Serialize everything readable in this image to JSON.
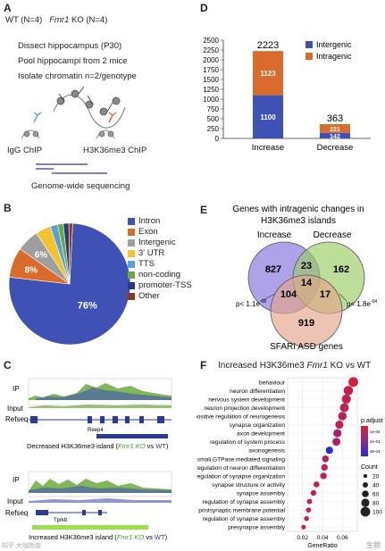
{
  "panels": {
    "A": {
      "letter": "A",
      "genotypes": "WT (N=4)   Fmr1 KO (N=4)",
      "wt": "WT (N=4)",
      "ko_gene": "Fmr1",
      "ko_rest": " KO (N=4)",
      "steps": [
        "Dissect hippocampus (P30)",
        "Pool hippocampi from 2 mice",
        "Isolate chromatin n=2/genotype"
      ],
      "igg": "IgG ChIP",
      "h3": "H3K36me3 ChIP",
      "seq": "Genome-wide sequencing"
    },
    "B": {
      "letter": "B",
      "slice_labels": [
        "76%",
        "8%",
        "6%"
      ],
      "legend": [
        {
          "label": "Intron",
          "color": "#3f51b5"
        },
        {
          "label": "Exon",
          "color": "#d96b2b"
        },
        {
          "label": "Intergenic",
          "color": "#9e9e9e"
        },
        {
          "label": "3' UTR",
          "color": "#f2c230"
        },
        {
          "label": "TTS",
          "color": "#5aa0d8"
        },
        {
          "label": "non-coding",
          "color": "#6aaa3a"
        },
        {
          "label": "promoter-TSS",
          "color": "#2b3a7a"
        },
        {
          "label": "Other",
          "color": "#8b3a1a"
        }
      ]
    },
    "C": {
      "letter": "C",
      "track1": {
        "ip": "IP",
        "input": "Input",
        "refseq": "Refseq",
        "gene": "Reep4"
      },
      "caption1_pre": "Decreased H3K36me3 island (",
      "caption1_ko": "Fmr1 KO",
      "caption1_mid": " vs ",
      "caption1_wt": "WT",
      "caption1_post": ")",
      "track2": {
        "ip": "IP",
        "input": "Input",
        "refseq": "Refseq",
        "gene": "Tprkb"
      },
      "caption2_pre": "Increased H3K36me3 island (",
      "caption2_ko": "Fmr1 KO",
      "caption2_mid": " vs ",
      "caption2_wt": "WT",
      "caption2_post": ")",
      "watermark": "知乎 大咖指南"
    },
    "D": {
      "letter": "D",
      "legend": [
        {
          "label": "Intergenic",
          "color": "#3f51b5"
        },
        {
          "label": "Intragenic",
          "color": "#d96b2b"
        }
      ]
    },
    "E": {
      "letter": "E",
      "title_line1": "Genes with intragenic changes in",
      "title_line2": "H3K36me3 islands",
      "set_labels": [
        "Increase",
        "Decrease",
        "SFARI ASD genes"
      ],
      "counts": {
        "inc_only": "827",
        "inc_dec": "23",
        "dec_only": "162",
        "inc_sfari": "104",
        "all": "14",
        "dec_sfari": "17",
        "sfari_only": "919"
      },
      "p_left": "p< 1.1e",
      "p_left_exp": "-08",
      "p_right": "p< 1.8e",
      "p_right_exp": "-04"
    },
    "F": {
      "letter": "F",
      "title_pre": "Increased H3K36me3 ",
      "title_gene": "Fmr1",
      "title_post": " KO vs WT",
      "padj_title": "p.adjust",
      "padj_ticks": [
        "1e-04",
        "2e-04",
        "3e-04"
      ],
      "count_title": "Count",
      "count_ticks": [
        "20",
        "40",
        "60",
        "80",
        "100"
      ],
      "watermark": "生物"
    }
  },
  "chart_data": [
    {
      "type": "pie",
      "categories": [
        "Intron",
        "Exon",
        "Intergenic",
        "3' UTR",
        "TTS",
        "non-coding",
        "promoter-TSS",
        "Other"
      ],
      "values": [
        76,
        8,
        6,
        4,
        2,
        1.5,
        1.5,
        1
      ],
      "colors": [
        "#3f51b5",
        "#d96b2b",
        "#9e9e9e",
        "#f2c230",
        "#5aa0d8",
        "#6aaa3a",
        "#2b3a7a",
        "#8b3a1a"
      ]
    },
    {
      "type": "bar",
      "stacked": true,
      "categories": [
        "Increase",
        "Decrease"
      ],
      "series": [
        {
          "name": "Intergenic",
          "values": [
            1100,
            142
          ],
          "color": "#3f51b5"
        },
        {
          "name": "Intragenic",
          "values": [
            1123,
            221
          ],
          "color": "#d96b2b"
        }
      ],
      "totals": [
        2223,
        363
      ],
      "ylim": [
        0,
        2500
      ],
      "yticks": [
        0,
        250,
        500,
        750,
        1000,
        1250,
        1500,
        1750,
        2000,
        2250,
        2500
      ],
      "legend_position": "top-right"
    },
    {
      "type": "scatter",
      "xlabel": "GeneRatio",
      "xticks": [
        0.02,
        0.04,
        0.06
      ],
      "xticklabels": [
        "0.02",
        "0.04",
        "0.06"
      ],
      "xlim": [
        0.005,
        0.075
      ],
      "categories": [
        "behaviour",
        "neuron differentiation",
        "nervous system development",
        "neuron projection development",
        "positive regulation of neurogenesis",
        "synapse organization",
        "axon development",
        "regulation of system process",
        "axonogenesis",
        "small GTPase mediated signaling",
        "regulation of neuron differentiation",
        "regulation of synapse organization",
        "synapse structure or activity",
        "synapse assembly",
        "regulation of synapse assembly",
        "postsynaptic membrane potential",
        "regulation of synapse assembly",
        "presynapse assembly"
      ],
      "gene_ratio": [
        0.071,
        0.066,
        0.064,
        0.062,
        0.06,
        0.057,
        0.055,
        0.054,
        0.047,
        0.043,
        0.042,
        0.041,
        0.034,
        0.031,
        0.027,
        0.026,
        0.024,
        0.021
      ],
      "count": [
        100,
        95,
        92,
        88,
        85,
        80,
        78,
        76,
        67,
        60,
        58,
        57,
        48,
        44,
        39,
        37,
        34,
        30
      ],
      "p_adjust": [
        3e-05,
        6e-05,
        5e-05,
        7e-05,
        8e-05,
        6e-05,
        0.00012,
        0.0001,
        0.00034,
        9e-05,
        8e-05,
        7e-05,
        5e-05,
        6e-05,
        5e-05,
        5e-05,
        5e-05,
        4e-05
      ]
    }
  ]
}
